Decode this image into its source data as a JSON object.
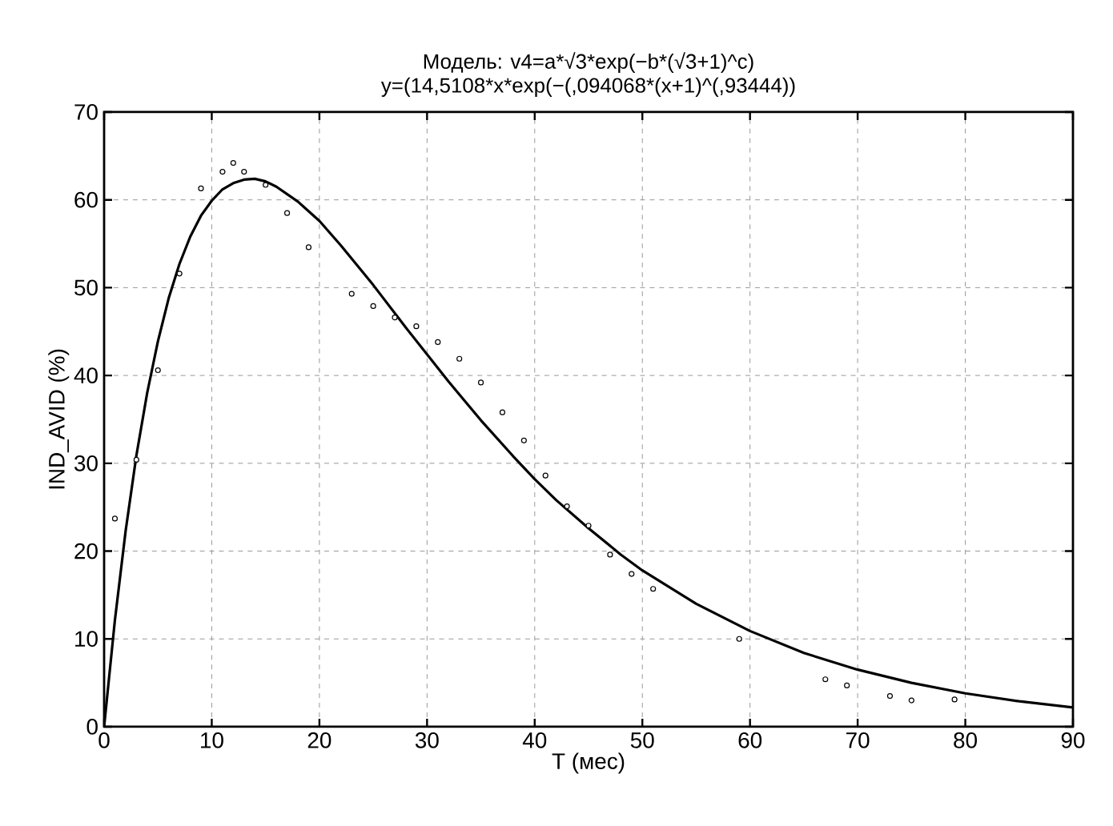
{
  "chart_data": {
    "type": "scatter",
    "title": "Модель: v4=a*√3*exp(−b*(√3+1)^c)",
    "subtitle": "y=(14,5108*x*exp(−(,094068*(x+1)^(,93444))",
    "xlabel": "T (мес)",
    "ylabel": "IND_AVID (%)",
    "xlim": [
      0,
      90
    ],
    "ylim": [
      0,
      70
    ],
    "xticks": [
      0,
      10,
      20,
      30,
      40,
      50,
      60,
      70,
      80,
      90
    ],
    "yticks": [
      0,
      10,
      20,
      30,
      40,
      50,
      60,
      70
    ],
    "grid": true,
    "series": [
      {
        "marker": "circle",
        "color": "#000000",
        "x": [
          1,
          3,
          5,
          7,
          9,
          11,
          12,
          13,
          15,
          17,
          19,
          23,
          25,
          27,
          29,
          31,
          33,
          35,
          37,
          39,
          41,
          43,
          45,
          47,
          49,
          51,
          59,
          67,
          69,
          73,
          75,
          79
        ],
        "values": [
          23.7,
          30.4,
          40.6,
          51.6,
          61.3,
          63.2,
          64.2,
          63.2,
          61.7,
          58.5,
          54.6,
          49.3,
          47.9,
          46.6,
          45.6,
          43.8,
          41.9,
          39.2,
          35.8,
          32.6,
          28.6,
          25.1,
          22.9,
          19.6,
          17.4,
          15.7,
          10.0,
          5.4,
          4.7,
          3.5,
          3.0,
          3.1
        ]
      },
      {
        "type": "line",
        "marker": "none",
        "line_style": "solid",
        "color": "#000000",
        "x": [
          0,
          1,
          2,
          3,
          4,
          5,
          6,
          7,
          8,
          9,
          10,
          11,
          12,
          13,
          14,
          15,
          16,
          18,
          20,
          22,
          25,
          28,
          30,
          32,
          35,
          38,
          40,
          42,
          45,
          48,
          50,
          55,
          60,
          65,
          70,
          75,
          80,
          85,
          90
        ],
        "values": [
          0,
          12.1,
          22.3,
          30.9,
          38.0,
          43.9,
          48.8,
          52.7,
          55.8,
          58.2,
          59.9,
          61.2,
          61.9,
          62.3,
          62.4,
          62.1,
          61.5,
          59.8,
          57.6,
          54.8,
          50.3,
          45.5,
          42.4,
          39.3,
          34.9,
          30.8,
          28.2,
          25.8,
          22.6,
          19.6,
          17.8,
          14.0,
          10.9,
          8.4,
          6.5,
          5.0,
          3.8,
          2.9,
          2.2
        ]
      }
    ]
  }
}
